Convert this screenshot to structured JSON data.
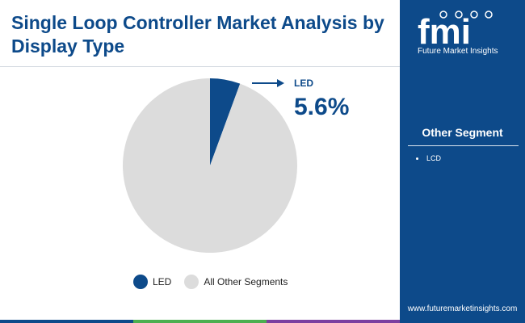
{
  "title": "Single Loop Controller Market Analysis by Display Type",
  "chart_data": {
    "type": "pie",
    "slices": [
      {
        "name": "LED",
        "value": 5.6,
        "color": "#0d4a8a"
      },
      {
        "name": "All Other Segments",
        "value": 94.4,
        "color": "#dcdcdc"
      }
    ],
    "callout": {
      "label": "LED",
      "value": "5.6%"
    },
    "legend": [
      {
        "label": "LED",
        "color": "#0d4a8a"
      },
      {
        "label": "All Other Segments",
        "color": "#dcdcdc"
      }
    ]
  },
  "sidebar": {
    "brand_text": "Future Market Insights",
    "logo_letters": "fmi",
    "segment_title": "Other Segment",
    "segments": [
      "LCD"
    ],
    "website": "www.futuremarketinsights.com"
  },
  "colors": {
    "brand": "#0d4a8a",
    "bottom_bar": [
      "#0d4a8a",
      "#4caf50",
      "#7b3fa0",
      "#0d4a8a"
    ]
  }
}
